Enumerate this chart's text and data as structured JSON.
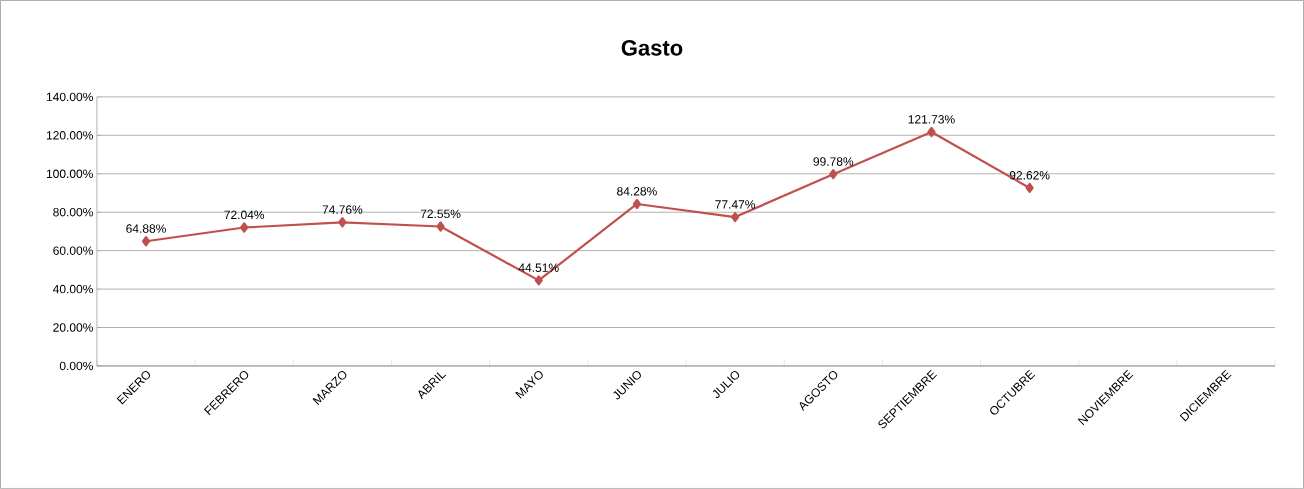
{
  "chart_data": {
    "type": "line",
    "title": "Gasto",
    "categories": [
      "ENERO",
      "FEBRERO",
      "MARZO",
      "ABRIL",
      "MAYO",
      "JUNIO",
      "JULIO",
      "AGOSTO",
      "SEPTIEMBRE",
      "OCTUBRE",
      "NOVIEMBRE",
      "DICIEMBRE"
    ],
    "series": [
      {
        "color": "#c0504d",
        "values": [
          64.88,
          72.04,
          74.76,
          72.55,
          44.51,
          84.28,
          77.47,
          99.78,
          121.73,
          92.62,
          null,
          null
        ],
        "value_labels": [
          "64.88%",
          "72.04%",
          "74.76%",
          "72.55%",
          "44.51%",
          "84.28%",
          "77.47%",
          "99.78%",
          "121.73%",
          "92.62%",
          null,
          null
        ]
      }
    ],
    "ylim": [
      0,
      140
    ],
    "yticks": [
      {
        "value": 0,
        "label": "0.00%"
      },
      {
        "value": 20,
        "label": "20.00%"
      },
      {
        "value": 40,
        "label": "40.00%"
      },
      {
        "value": 60,
        "label": "60.00%"
      },
      {
        "value": 80,
        "label": "80.00%"
      },
      {
        "value": 100,
        "label": "100.00%"
      },
      {
        "value": 120,
        "label": "120.00%"
      },
      {
        "value": 140,
        "label": "140.00%"
      }
    ],
    "grid": "y",
    "marker": "diamond",
    "line_style": "solid"
  }
}
